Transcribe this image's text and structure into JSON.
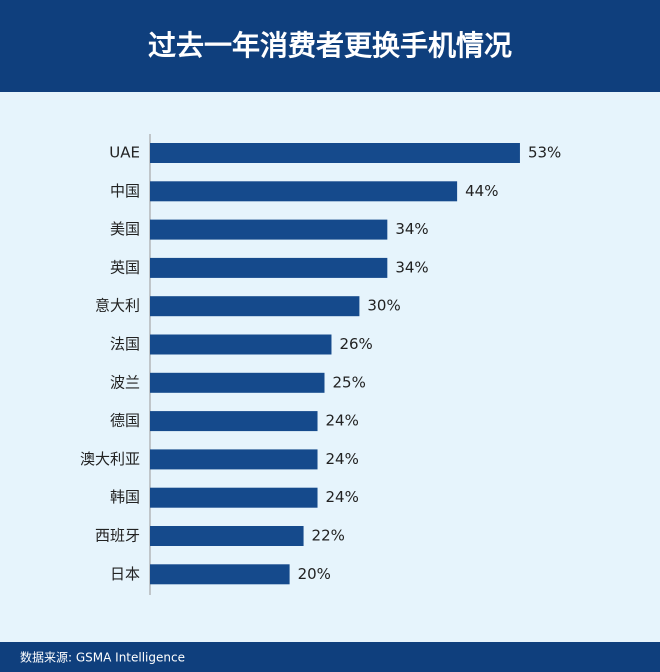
{
  "chart_data": {
    "type": "bar",
    "title": "过去一年消费者更换手机情况",
    "categories": [
      "UAE",
      "中国",
      "美国",
      "英国",
      "意大利",
      "法国",
      "波兰",
      "德国",
      "澳大利亚",
      "韩国",
      "西班牙",
      "日本"
    ],
    "values": [
      53,
      44,
      34,
      34,
      30,
      26,
      25,
      24,
      24,
      24,
      22,
      20
    ],
    "value_labels": [
      "53%",
      "44%",
      "34%",
      "34%",
      "30%",
      "26%",
      "25%",
      "24%",
      "24%",
      "24%",
      "22%",
      "20%"
    ],
    "color": "#154a8c",
    "source": "数据来源: GSMA Intelligence"
  }
}
